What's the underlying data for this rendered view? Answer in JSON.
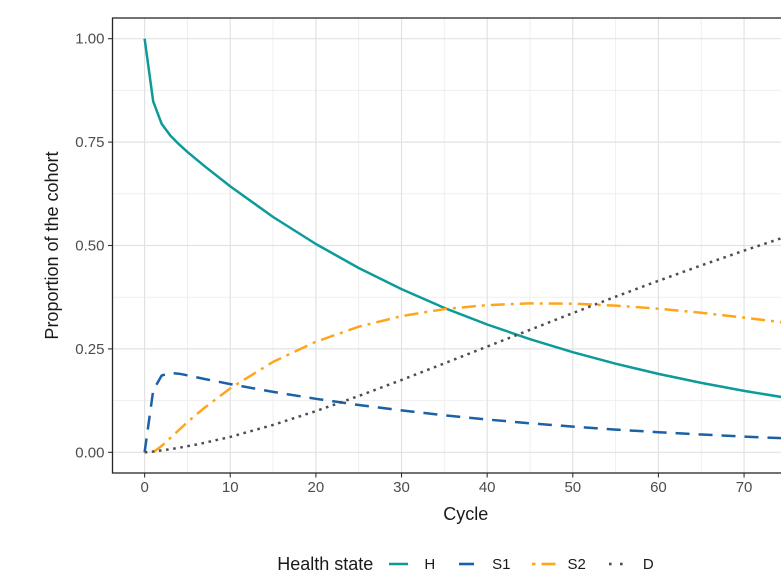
{
  "chart_data": {
    "type": "line",
    "title": "",
    "xlabel": "Cycle",
    "ylabel": "Proportion of the cohort",
    "xlim": [
      -3.75,
      78.75
    ],
    "ylim": [
      -0.05,
      1.05
    ],
    "grid": true,
    "legend": {
      "title": "Health state",
      "position": "bottom"
    },
    "x_major_ticks": [
      0,
      10,
      20,
      30,
      40,
      50,
      60,
      70
    ],
    "x_minor_ticks": [
      5,
      15,
      25,
      35,
      45,
      55,
      65,
      75
    ],
    "y_major_ticks": [
      0,
      0.25,
      0.5,
      0.75,
      1
    ],
    "y_tick_labels": [
      "0.00",
      "0.25",
      "0.50",
      "0.75",
      "1.00"
    ],
    "y_minor_ticks": [
      0.125,
      0.375,
      0.625,
      0.875
    ],
    "x": [
      0,
      1,
      2,
      3,
      4,
      5,
      6,
      7,
      10,
      15,
      20,
      25,
      30,
      35,
      40,
      45,
      50,
      55,
      60,
      65,
      70,
      75
    ],
    "series": [
      {
        "name": "H",
        "color": "#0D9A9A",
        "linetype": "solid",
        "values": [
          1.0,
          0.8483,
          0.794,
          0.7659,
          0.745,
          0.7264,
          0.7089,
          0.6918,
          0.6429,
          0.569,
          0.5036,
          0.4457,
          0.3945,
          0.3492,
          0.309,
          0.2735,
          0.2421,
          0.2142,
          0.1896,
          0.1678,
          0.1485,
          0.1315
        ]
      },
      {
        "name": "S1",
        "color": "#1A61A5",
        "linetype": "dashed",
        "values": [
          0.0,
          0.1497,
          0.1858,
          0.1918,
          0.19,
          0.1861,
          0.1816,
          0.1772,
          0.165,
          0.1461,
          0.1293,
          0.1144,
          0.1013,
          0.0896,
          0.0793,
          0.0702,
          0.0621,
          0.055,
          0.0487,
          0.0431,
          0.0381,
          0.0337
        ]
      },
      {
        "name": "S2",
        "color": "#FFA51C",
        "linetype": "dotdash",
        "values": [
          0.0,
          0.0,
          0.0156,
          0.0347,
          0.054,
          0.0728,
          0.0908,
          0.1079,
          0.1547,
          0.2187,
          0.2675,
          0.3036,
          0.3293,
          0.3462,
          0.356,
          0.36,
          0.3592,
          0.3546,
          0.3471,
          0.3372,
          0.3257,
          0.3128
        ]
      },
      {
        "name": "D",
        "color": "#4D4D4D",
        "linetype": "dotted",
        "values": [
          0.0,
          0.002,
          0.0046,
          0.0076,
          0.011,
          0.0147,
          0.0187,
          0.023,
          0.0373,
          0.0662,
          0.0997,
          0.1362,
          0.1749,
          0.215,
          0.2556,
          0.2963,
          0.3366,
          0.3762,
          0.4146,
          0.4519,
          0.4877,
          0.522
        ]
      }
    ],
    "palette": {
      "grid_major": "#E2E2E2",
      "grid_minor": "#EFEFEF",
      "panel_border": "#262626",
      "tick_mark": "#333333",
      "tick_text": "#4d4d4d",
      "title_text": "#1a1a1a"
    }
  }
}
